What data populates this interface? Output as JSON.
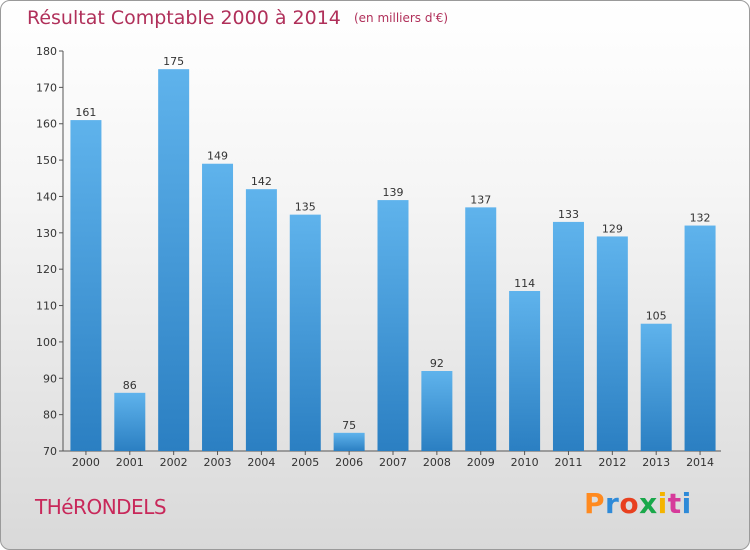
{
  "chart_data": {
    "type": "bar",
    "title": "Résultat Comptable 2000 à 2014",
    "subtitle": "(en milliers d'€)",
    "categories": [
      "2000",
      "2001",
      "2002",
      "2003",
      "2004",
      "2005",
      "2006",
      "2007",
      "2008",
      "2009",
      "2010",
      "2011",
      "2012",
      "2013",
      "2014"
    ],
    "values": [
      161,
      86,
      175,
      149,
      142,
      135,
      75,
      139,
      92,
      137,
      114,
      133,
      129,
      105,
      132
    ],
    "ylim": [
      70,
      180
    ],
    "yticks": [
      70,
      80,
      90,
      100,
      110,
      120,
      130,
      140,
      150,
      160,
      170,
      180
    ],
    "grid": false,
    "bar_color_top": "#5fb3ec",
    "bar_color_bottom": "#2b7fc2"
  },
  "footer": {
    "commune": "THéRONDELS",
    "brand": "Proxiti"
  },
  "colors": {
    "title": "#b0305a",
    "commune": "#c8285a",
    "brand_letters": [
      "#ff8a1f",
      "#2e8ad8",
      "#e8401f",
      "#1aa84a",
      "#f4b400",
      "#d63a9a",
      "#2e8ad8"
    ]
  }
}
